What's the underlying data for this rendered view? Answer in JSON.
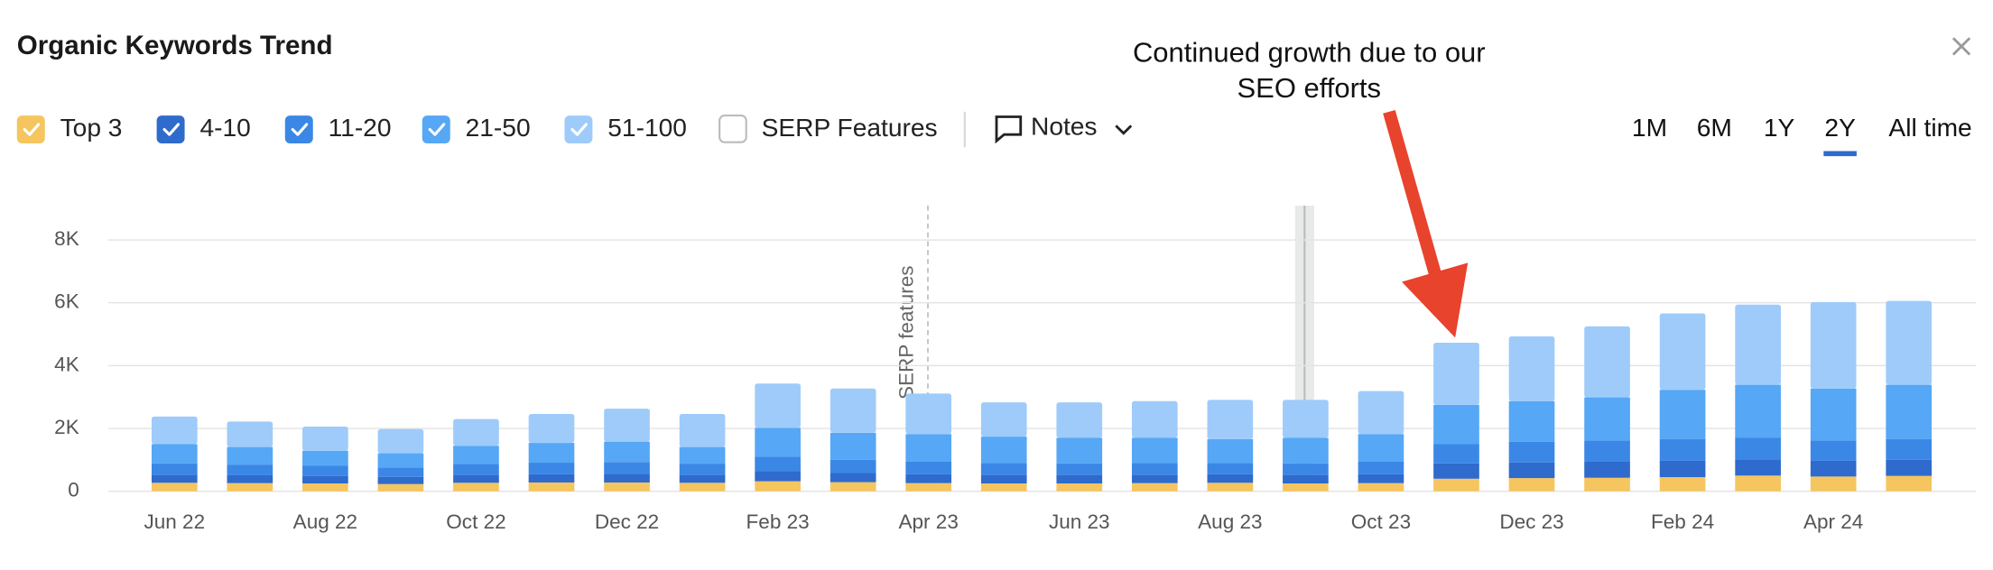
{
  "chart_data": {
    "type": "stacked_bar",
    "title": "Organic Keywords Trend",
    "categories": [
      "Jun 22",
      null,
      "Aug 22",
      null,
      "Oct 22",
      null,
      "Dec 22",
      null,
      "Feb 23",
      null,
      "Apr 23",
      null,
      "Jun 23",
      null,
      "Aug 23",
      null,
      "Oct 23",
      null,
      "Dec 23",
      null,
      "Feb 24",
      null,
      "Apr 24",
      null
    ],
    "series": [
      {
        "name": "Top 3",
        "color": "#f5c55f",
        "values": [
          270,
          260,
          250,
          230,
          270,
          280,
          280,
          270,
          320,
          290,
          260,
          250,
          250,
          260,
          270,
          250,
          260,
          400,
          420,
          430,
          450,
          500,
          470,
          490
        ]
      },
      {
        "name": "4-10",
        "color": "#2e6bcc",
        "values": [
          260,
          250,
          240,
          230,
          250,
          260,
          270,
          260,
          320,
          290,
          280,
          270,
          270,
          270,
          270,
          270,
          280,
          490,
          500,
          510,
          520,
          520,
          500,
          510
        ]
      },
      {
        "name": "11-20",
        "color": "#3b87e6",
        "values": [
          360,
          340,
          320,
          300,
          350,
          370,
          380,
          350,
          460,
          420,
          400,
          380,
          370,
          370,
          360,
          370,
          400,
          610,
          660,
          680,
          690,
          680,
          650,
          660
        ]
      },
      {
        "name": "21-50",
        "color": "#56a7f5",
        "values": [
          610,
          560,
          480,
          450,
          580,
          630,
          650,
          530,
          920,
          860,
          880,
          840,
          810,
          800,
          760,
          810,
          880,
          1250,
          1290,
          1370,
          1570,
          1690,
          1650,
          1730
        ]
      },
      {
        "name": "51-100",
        "color": "#9ecbfa",
        "values": [
          880,
          810,
          770,
          770,
          850,
          920,
          1050,
          1050,
          1410,
          1410,
          1290,
          1090,
          1130,
          1170,
          1250,
          1210,
          1370,
          1980,
          2060,
          2260,
          2430,
          2550,
          2750,
          2670
        ]
      }
    ],
    "ylim": [
      0,
      8000
    ],
    "yticks": [
      0,
      {
        "value": 2000,
        "label": "2K"
      },
      {
        "value": 4000,
        "label": "4K"
      },
      {
        "value": 6000,
        "label": "6K"
      },
      {
        "value": 8000,
        "label": "8K"
      }
    ],
    "grid": true,
    "extra_legend": "SERP Features",
    "notes_button": "Notes",
    "ranges": [
      "1M",
      "6M",
      "1Y",
      "2Y",
      "All time"
    ],
    "active_range": 3,
    "marker_label": "SERP features",
    "annotation": [
      "Continued growth due to our",
      "SEO efforts"
    ]
  }
}
